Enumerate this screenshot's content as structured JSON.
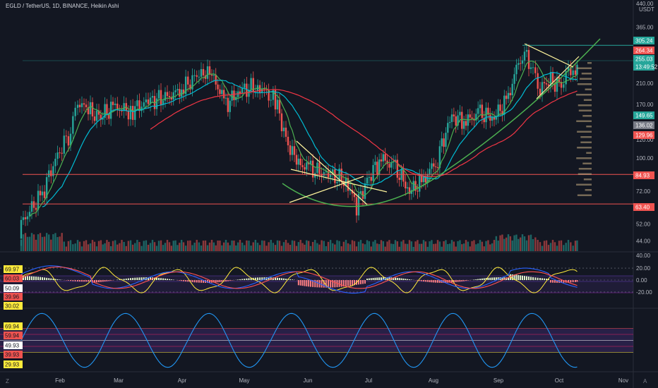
{
  "header": {
    "title": "EGLD / TetherUS, 1D, BINANCE, Heikin Ashi"
  },
  "price_axis": {
    "unit": "USDT",
    "ticks": [
      "440.00",
      "365.00",
      "255.00",
      "210.00",
      "170.00",
      "120.00",
      "100.00",
      "72.00",
      "52.00",
      "44.00"
    ],
    "labels": [
      {
        "text": "305.24",
        "bg": "#26a69a"
      },
      {
        "text": "264.34",
        "bg": "#ef5350"
      },
      {
        "text": "255.03",
        "bg": "#26a69a"
      },
      {
        "text": "13:49:52",
        "bg": "#26a69a"
      },
      {
        "text": "149.65",
        "bg": "#26a69a"
      },
      {
        "text": "136.02",
        "bg": "#787b86"
      },
      {
        "text": "129.96",
        "bg": "#ef5350"
      },
      {
        "text": "84.93",
        "bg": "#ef5350"
      },
      {
        "text": "63.40",
        "bg": "#ef5350"
      }
    ]
  },
  "macd_axis": {
    "ticks": [
      "40.00",
      "20.00",
      "0.00",
      "-20.00"
    ]
  },
  "rsi_panel_labels": [
    {
      "text": "69.97",
      "bg": "#ffeb3b"
    },
    {
      "text": "60.03",
      "bg": "#ef5350"
    },
    {
      "text": "50.09",
      "bg": "#ffffff"
    },
    {
      "text": "39.96",
      "bg": "#ef5350"
    },
    {
      "text": "30.02",
      "bg": "#ffeb3b"
    }
  ],
  "stoch_panel_labels": [
    {
      "text": "69.94",
      "bg": "#ffeb3b"
    },
    {
      "text": "59.94",
      "bg": "#ef5350"
    },
    {
      "text": "49.93",
      "bg": "#ffffff"
    },
    {
      "text": "39.93",
      "bg": "#ef5350"
    },
    {
      "text": "29.93",
      "bg": "#ffeb3b"
    }
  ],
  "time_axis": {
    "labels": [
      "Feb",
      "Mar",
      "Apr",
      "May",
      "Jun",
      "Jul",
      "Aug",
      "Sep",
      "Oct",
      "Nov"
    ]
  },
  "corner_buttons": {
    "z": "Z",
    "a": "A"
  },
  "colors": {
    "bg": "#131722",
    "up": "#26a69a",
    "down": "#ef5350",
    "text": "#d1d4dc",
    "ma_green": "#4caf50",
    "ma_teal": "#00bcd4",
    "ma_red": "#f23645",
    "macd_blue": "#2962ff",
    "signal_red": "#ff5252",
    "rsi_yellow": "#ffeb3b",
    "stoch": "#2196f3"
  },
  "chart_data": {
    "type": "candlestick",
    "series_kind": "heikin_ashi",
    "price_log_scale": true,
    "ylim": [
      44,
      440
    ],
    "horizontal_levels": [
      305.24,
      84.93,
      63.4
    ],
    "ohlc_monthly_approx": [
      {
        "month": "Jan",
        "low": 44,
        "high": 160
      },
      {
        "month": "Feb",
        "low": 110,
        "high": 200
      },
      {
        "month": "Mar",
        "low": 130,
        "high": 215
      },
      {
        "month": "Apr",
        "low": 160,
        "high": 250
      },
      {
        "month": "May",
        "low": 95,
        "high": 225
      },
      {
        "month": "Jun",
        "low": 55,
        "high": 115
      },
      {
        "month": "Jul",
        "low": 70,
        "high": 115
      },
      {
        "month": "Aug",
        "low": 100,
        "high": 170
      },
      {
        "month": "Sep",
        "low": 150,
        "high": 305
      },
      {
        "month": "Oct",
        "low": 190,
        "high": 270
      }
    ],
    "last_values": {
      "close": 255.03,
      "ma_fast": 149.65,
      "ma_mid": 136.02,
      "ma_slow": 129.96
    }
  }
}
